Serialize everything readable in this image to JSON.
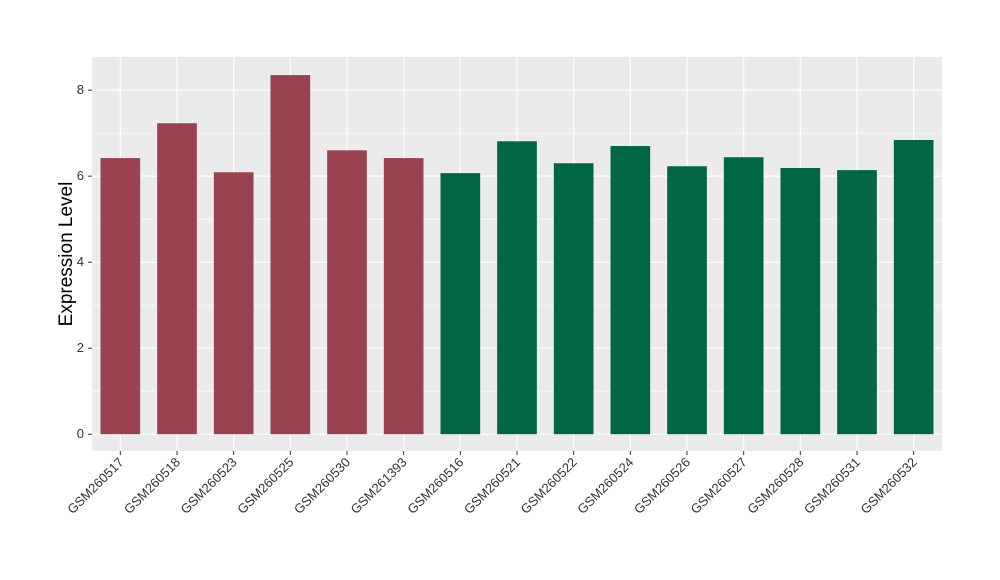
{
  "chart_data": {
    "type": "bar",
    "title": "",
    "xlabel": "",
    "ylabel": "Expression Level",
    "ylim": [
      -0.39,
      8.77
    ],
    "yticks": [
      0,
      2,
      4,
      6,
      8
    ],
    "grid": true,
    "categories": [
      "GSM260517",
      "GSM260518",
      "GSM260523",
      "GSM260525",
      "GSM260530",
      "GSM261393",
      "GSM260516",
      "GSM260521",
      "GSM260522",
      "GSM260524",
      "GSM260526",
      "GSM260527",
      "GSM260528",
      "GSM260531",
      "GSM260532"
    ],
    "values": [
      6.42,
      7.23,
      6.09,
      8.35,
      6.6,
      6.42,
      6.07,
      6.81,
      6.3,
      6.7,
      6.23,
      6.44,
      6.19,
      6.14,
      6.84
    ],
    "groups": [
      0,
      0,
      0,
      0,
      0,
      0,
      1,
      1,
      1,
      1,
      1,
      1,
      1,
      1,
      1
    ],
    "group_colors": [
      "#9a4250",
      "#006644"
    ],
    "panel_color": "#ebebeb"
  }
}
